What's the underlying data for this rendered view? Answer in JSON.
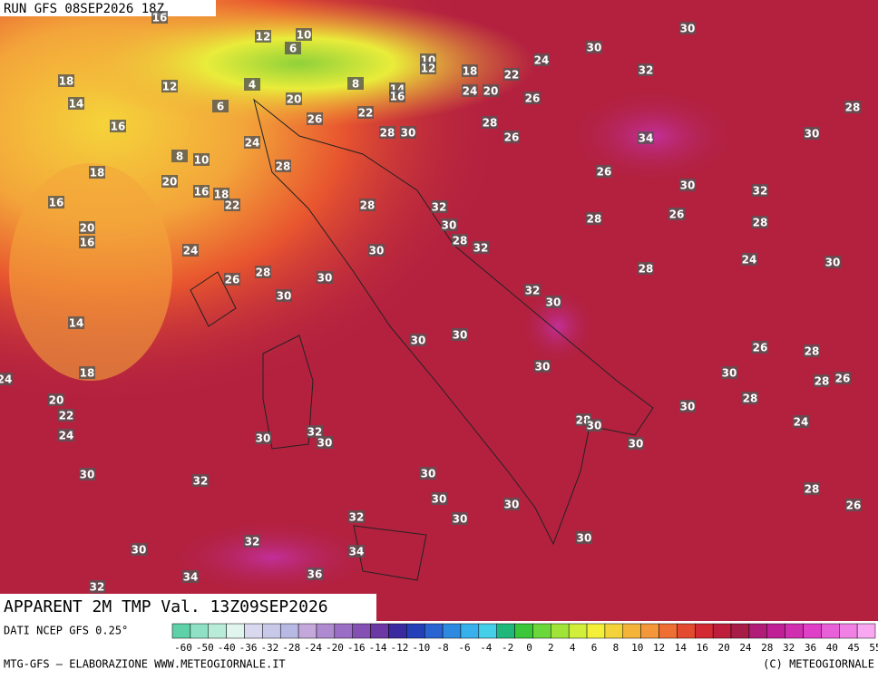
{
  "header": {
    "run": "RUN GFS 08SEP2026 18Z",
    "variable": "APPARENT 2M TMP Val. 13Z09SEP2026",
    "source": "DATI NCEP GFS 0.25°",
    "footer_left": "MTG-GFS — ELABORAZIONE WWW.METEOGIORNALE.IT",
    "footer_right": "(C) METEOGIORNALE"
  },
  "map_labels": [
    12,
    10,
    6,
    18,
    12,
    4,
    14,
    6,
    20,
    16,
    26,
    22,
    28,
    30,
    24,
    8,
    10,
    28,
    18,
    20,
    16,
    18,
    22,
    16,
    20,
    16,
    24,
    28,
    32,
    30,
    28,
    32,
    30,
    28,
    26,
    30,
    30,
    32,
    30,
    30,
    30,
    14,
    18,
    30,
    20,
    22,
    24,
    30,
    32,
    30,
    30,
    32,
    30,
    30,
    30,
    30,
    32,
    32,
    34,
    30,
    36,
    34,
    32,
    30,
    28,
    30,
    30,
    30,
    30,
    30,
    24,
    32,
    22,
    18,
    24,
    20,
    26,
    28,
    26,
    34,
    28,
    30,
    26,
    30,
    32,
    26,
    28,
    28,
    24,
    30,
    28,
    26,
    28,
    30,
    28,
    26,
    28,
    24,
    28,
    26,
    10,
    12,
    14,
    16,
    8,
    16,
    24
  ],
  "colorbar_labels": [
    "-60",
    "-50",
    "-40",
    "-36",
    "-32",
    "-28",
    "-24",
    "-20",
    "-16",
    "-14",
    "-12",
    "-10",
    "-8",
    "-6",
    "-4",
    "-2",
    "0",
    "2",
    "4",
    "6",
    "8",
    "10",
    "12",
    "14",
    "16",
    "20",
    "24",
    "28",
    "32",
    "36",
    "40",
    "45",
    "55"
  ]
}
